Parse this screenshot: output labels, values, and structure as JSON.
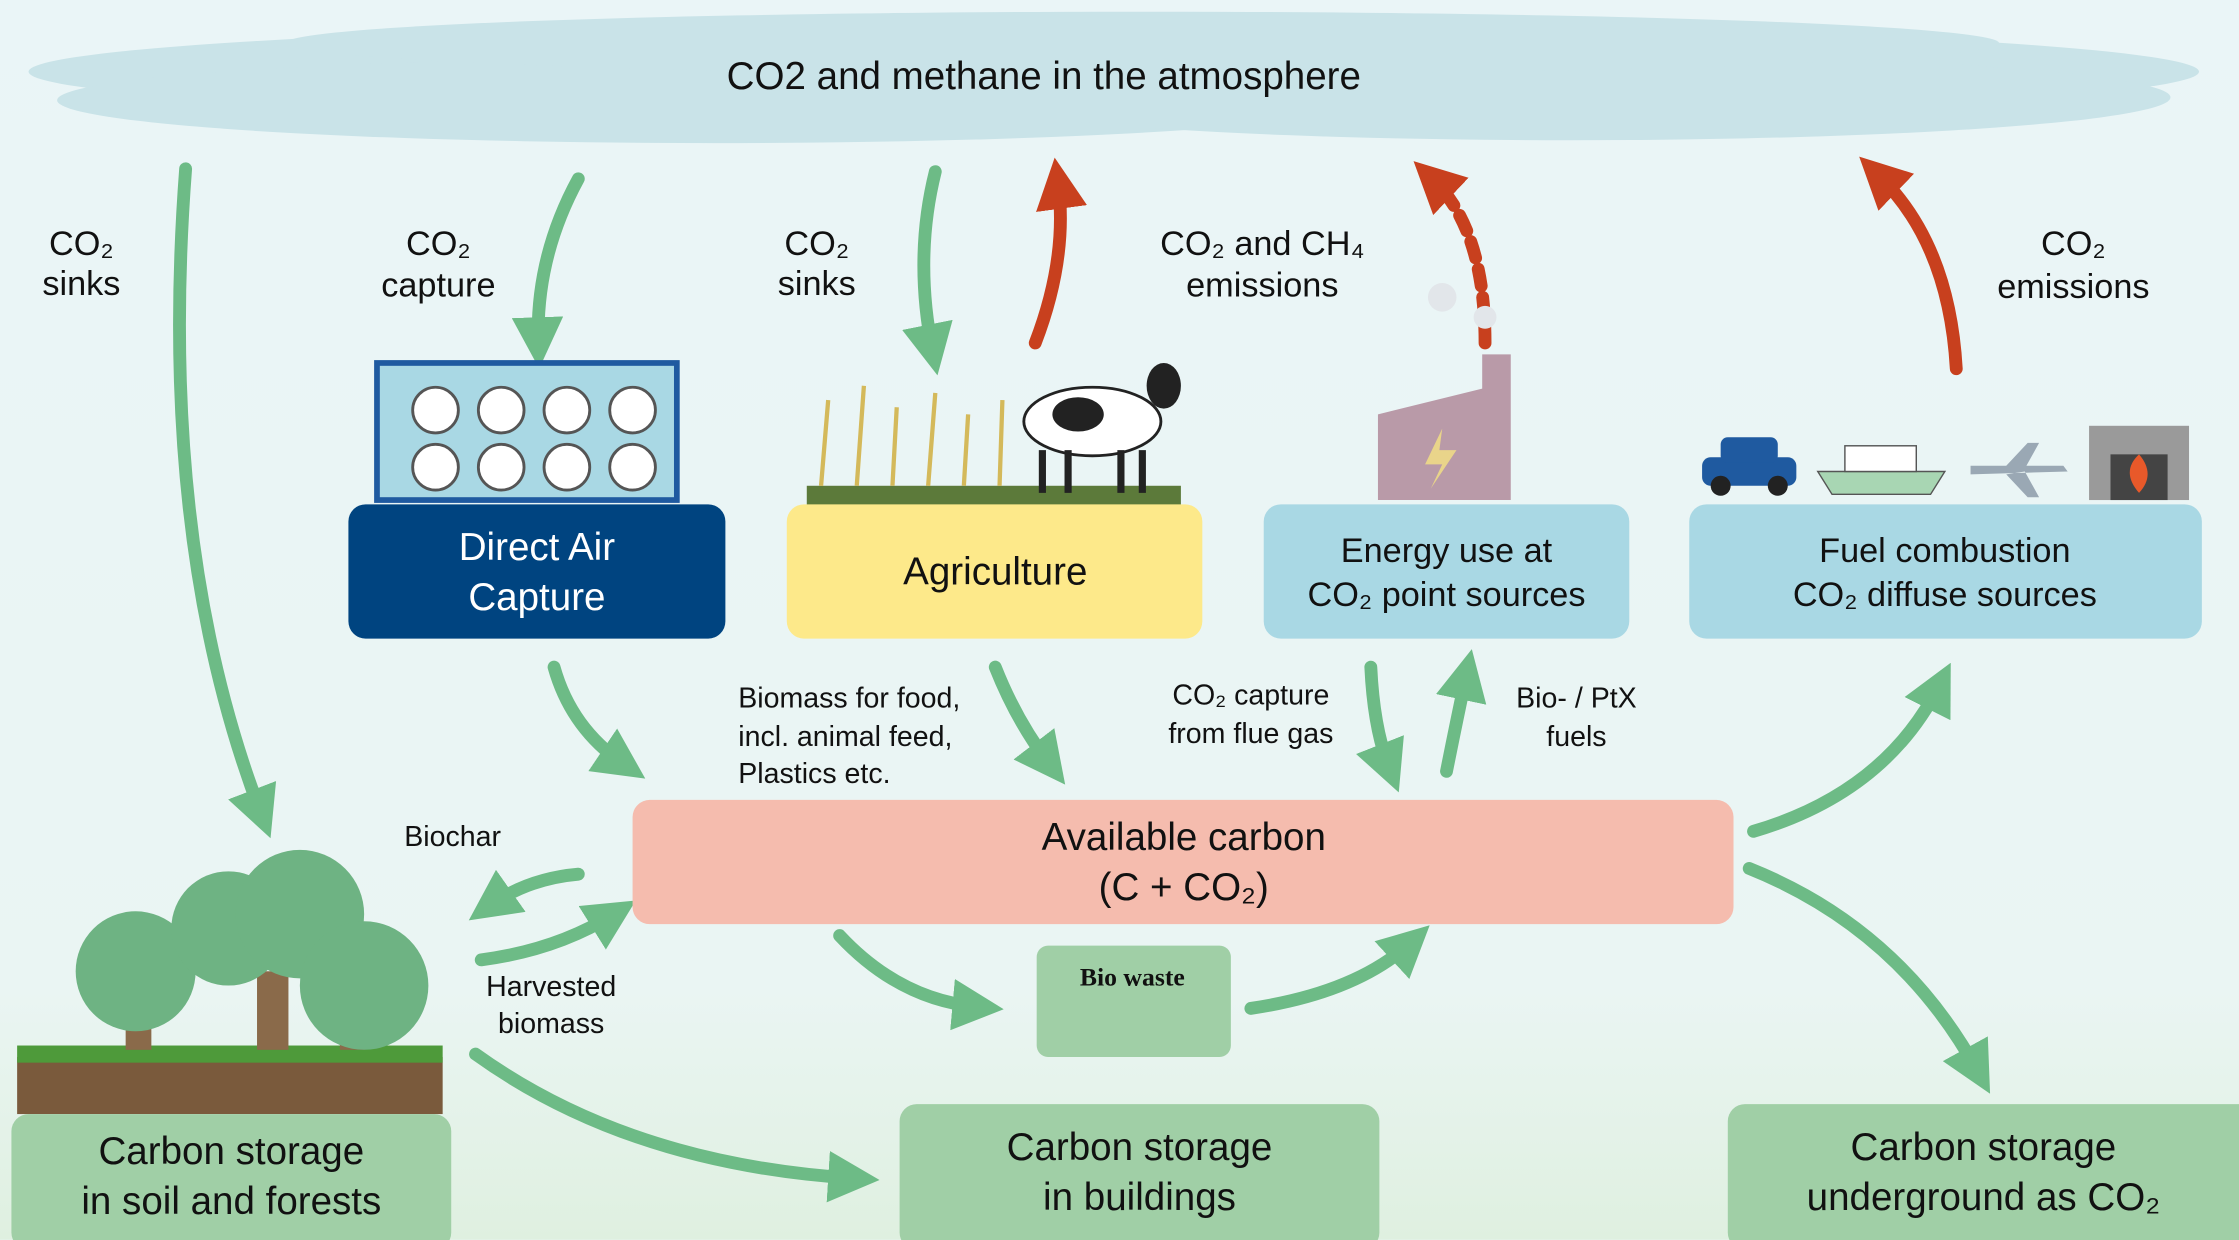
{
  "atmosphere": {
    "label": "CO2 and methane in the atmosphere"
  },
  "flow_labels": [
    {
      "lines": [
        "CO₂",
        "sinks"
      ]
    },
    {
      "lines": [
        "CO₂",
        "capture"
      ]
    },
    {
      "lines": [
        "CO₂",
        "sinks"
      ]
    },
    {
      "lines": [
        "CO₂ and CH₄",
        "emissions"
      ]
    },
    {
      "lines": [
        "CO₂",
        "emissions"
      ]
    },
    {
      "lines": [
        "Biomass for food,",
        "incl. animal feed,",
        "Plastics etc."
      ]
    },
    {
      "lines": [
        "CO₂ capture",
        "from flue gas"
      ]
    },
    {
      "lines": [
        "Bio- / PtX",
        "fuels"
      ]
    },
    {
      "lines": [
        "Biochar"
      ]
    },
    {
      "lines": [
        "Harvested",
        "biomass"
      ]
    }
  ],
  "nodes": [
    {
      "lines": [
        "Direct Air",
        "Capture"
      ]
    },
    {
      "lines": [
        "Agriculture"
      ]
    },
    {
      "lines": [
        "Energy use at",
        "CO₂ point sources"
      ]
    },
    {
      "lines": [
        "Fuel combustion",
        "CO₂ diffuse sources"
      ]
    },
    {
      "lines": [
        "Available carbon",
        "(C + CO₂)"
      ]
    },
    {
      "lines": [
        "Bio waste"
      ]
    },
    {
      "lines": [
        "Carbon storage",
        "in soil and forests"
      ]
    },
    {
      "lines": [
        "Carbon storage",
        "in buildings"
      ]
    },
    {
      "lines": [
        "Carbon storage",
        "underground as CO₂"
      ]
    }
  ]
}
